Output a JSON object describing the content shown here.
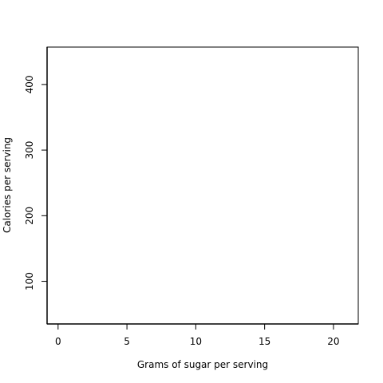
{
  "chart_data": {
    "type": "line",
    "title": "",
    "xlabel": "Grams of sugar per serving",
    "ylabel": "Calories per serving",
    "xlim": [
      -0.8,
      21.8
    ],
    "ylim": [
      35,
      457
    ],
    "x_ticks": [
      0,
      5,
      10,
      15,
      20
    ],
    "y_ticks": [
      100,
      200,
      300,
      400
    ],
    "grid": false,
    "series": [
      {
        "x": [
          -0.8,
          21.8
        ],
        "y": [
          35,
          35
        ],
        "color": "#000000"
      },
      {
        "x": [
          -0.8,
          -0.8
        ],
        "y": [
          35,
          457
        ],
        "color": "#000000"
      }
    ]
  }
}
